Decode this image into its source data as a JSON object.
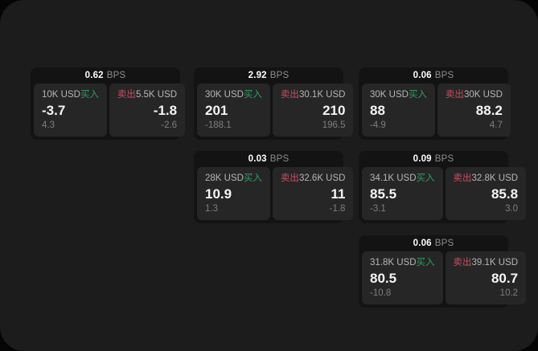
{
  "labels": {
    "bps_unit": "BPS",
    "buy": "买入",
    "sell": "卖出"
  },
  "colors": {
    "buy_green": "#2f9e62",
    "sell_red": "#c94f63",
    "window_bg": "#1c1c1c",
    "card_bg": "#131313",
    "panel_bg": "#262626"
  },
  "cards": [
    {
      "bps": "0.62",
      "buy": {
        "amount": "10K USD",
        "price": "-3.7",
        "sub": "4.3"
      },
      "sell": {
        "amount": "5.5K USD",
        "price": "-1.8",
        "sub": "-2.6"
      }
    },
    {
      "bps": "2.92",
      "buy": {
        "amount": "30K USD",
        "price": "201",
        "sub": "-188.1"
      },
      "sell": {
        "amount": "30.1K USD",
        "price": "210",
        "sub": "196.5"
      }
    },
    {
      "bps": "0.06",
      "buy": {
        "amount": "30K USD",
        "price": "88",
        "sub": "-4.9"
      },
      "sell": {
        "amount": "30K USD",
        "price": "88.2",
        "sub": "4.7"
      }
    },
    {
      "bps": "0.03",
      "buy": {
        "amount": "28K USD",
        "price": "10.9",
        "sub": "1.3"
      },
      "sell": {
        "amount": "32.6K USD",
        "price": "11",
        "sub": "-1.8"
      }
    },
    {
      "bps": "0.09",
      "buy": {
        "amount": "34.1K USD",
        "price": "85.5",
        "sub": "-3.1"
      },
      "sell": {
        "amount": "32.8K USD",
        "price": "85.8",
        "sub": "3.0"
      }
    },
    {
      "bps": "0.06",
      "buy": {
        "amount": "31.8K USD",
        "price": "80.5",
        "sub": "-10.8"
      },
      "sell": {
        "amount": "39.1K USD",
        "price": "80.7",
        "sub": "10.2"
      }
    }
  ]
}
